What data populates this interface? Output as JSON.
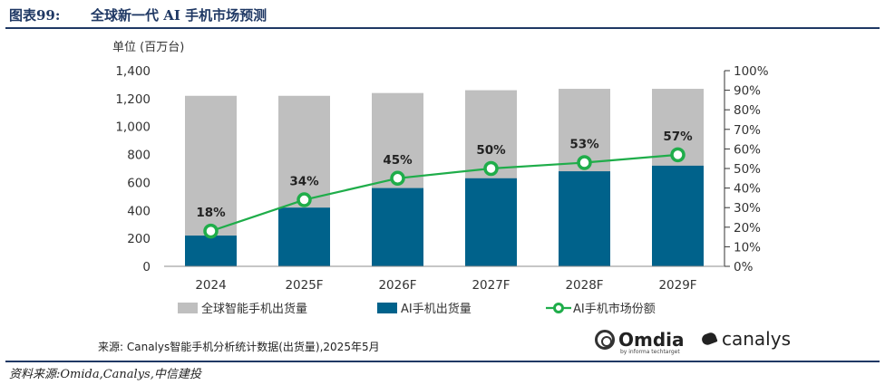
{
  "header": {
    "label": "图表99:",
    "title": "全球新一代 AI 手机市场预测"
  },
  "chart_data": {
    "type": "bar",
    "categories": [
      "2024",
      "2025F",
      "2026F",
      "2027F",
      "2028F",
      "2029F"
    ],
    "series": [
      {
        "name": "全球智能手机出货量",
        "type": "bar",
        "axis": "left",
        "color": "#bfbfbf",
        "values": [
          1220,
          1220,
          1240,
          1260,
          1270,
          1270
        ]
      },
      {
        "name": "AI手机出货量",
        "type": "bar",
        "axis": "left",
        "color": "#00628b",
        "values": [
          220,
          420,
          560,
          630,
          680,
          720
        ]
      },
      {
        "name": "AI手机市场份额",
        "type": "line",
        "axis": "right",
        "color": "#1fad4a",
        "values": [
          18,
          34,
          45,
          50,
          53,
          57
        ],
        "labels": [
          "18%",
          "34%",
          "45%",
          "50%",
          "53%",
          "57%"
        ]
      }
    ],
    "ylabel": "单位 (百万台)",
    "ylim": [
      0,
      1400
    ],
    "yticks": [
      "0",
      "200",
      "400",
      "600",
      "800",
      "1,000",
      "1,200",
      "1,400"
    ],
    "y2lim": [
      0,
      100
    ],
    "y2ticks": [
      "0%",
      "10%",
      "20%",
      "30%",
      "40%",
      "50%",
      "60%",
      "70%",
      "80%",
      "90%",
      "100%"
    ],
    "grid": false,
    "legend": "bottom"
  },
  "source": "来源: Canalys智能手机分析统计数据(出货量),2025年5月",
  "logos": {
    "omdia": "Omdia",
    "omdia_sub": "by informa techtarget",
    "canalys": "canalys"
  },
  "footer": "资料来源:Omida,Canalys,中信建投",
  "colors": {
    "accent": "#1f3864"
  }
}
